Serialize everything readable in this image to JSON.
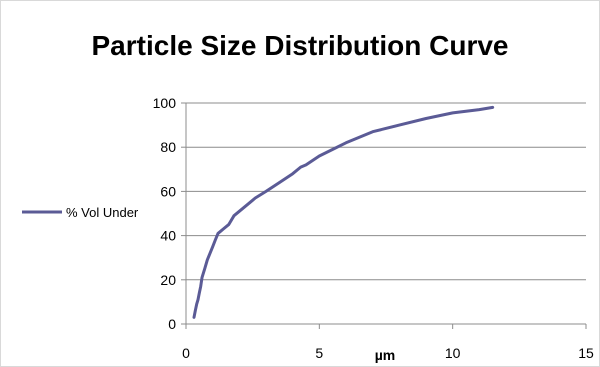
{
  "chart_data": {
    "type": "line",
    "title": "Particle Size Distribution Curve",
    "xlabel": "µm",
    "ylabel": "",
    "xlim": [
      0,
      15
    ],
    "ylim": [
      0,
      100
    ],
    "xticks": [
      0,
      5,
      10,
      15
    ],
    "yticks": [
      0,
      20,
      40,
      60,
      80,
      100
    ],
    "grid": "horizontal",
    "legend_position": "left",
    "series": [
      {
        "name": "% Vol Under",
        "color": "#5b5b96",
        "x": [
          0.3,
          0.35,
          0.4,
          0.45,
          0.5,
          0.55,
          0.6,
          0.7,
          0.8,
          0.9,
          1.0,
          1.1,
          1.2,
          1.3,
          1.4,
          1.6,
          1.8,
          2.0,
          2.3,
          2.6,
          3.0,
          3.5,
          4.0,
          4.3,
          4.5,
          5.0,
          5.5,
          6.0,
          7.0,
          8.0,
          9.0,
          10.0,
          11.0,
          11.5
        ],
        "y": [
          3,
          6,
          9,
          11,
          14,
          17,
          21,
          25,
          29,
          32,
          35,
          38,
          41,
          42,
          43,
          45,
          49,
          51,
          54,
          57,
          60,
          64,
          68,
          71,
          72,
          76,
          79,
          82,
          87,
          90,
          93,
          95.5,
          97,
          98
        ]
      }
    ]
  }
}
